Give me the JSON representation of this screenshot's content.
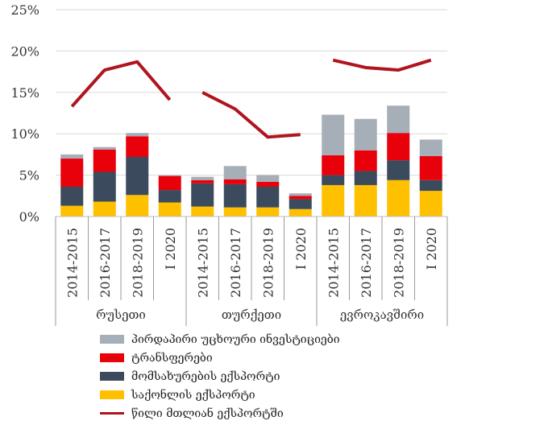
{
  "chart_data": {
    "type": "bar",
    "stacked": true,
    "y_ticks": [
      "0%",
      "5%",
      "10%",
      "15%",
      "20%",
      "25%"
    ],
    "ylim": [
      0,
      25
    ],
    "grid": true,
    "groups": [
      {
        "label": "რუსეთი",
        "categories": [
          "2014-2015",
          "2016-2017",
          "2018-2019",
          "I 2020"
        ]
      },
      {
        "label": "თურქეთი",
        "categories": [
          "2014-2015",
          "2016-2017",
          "2018-2019",
          "I 2020"
        ]
      },
      {
        "label": "ევროკავშირი",
        "categories": [
          "2014-2015",
          "2016-2017",
          "2018-2019",
          "I 2020"
        ]
      }
    ],
    "series": [
      {
        "name": "საქონლის ექსპორტი",
        "kind": "bar",
        "color": "#FFC000",
        "values": [
          1.3,
          1.8,
          2.6,
          1.7,
          1.2,
          1.1,
          1.1,
          0.9,
          3.8,
          3.8,
          4.4,
          3.1
        ]
      },
      {
        "name": "მომსახურების ექსპორტი",
        "kind": "bar",
        "color": "#3B4A5C",
        "values": [
          2.3,
          3.6,
          4.6,
          1.5,
          2.8,
          2.8,
          2.5,
          1.2,
          1.2,
          1.7,
          2.4,
          1.3
        ]
      },
      {
        "name": "ტრანსფერები",
        "kind": "bar",
        "color": "#E8000B",
        "values": [
          3.4,
          2.7,
          2.5,
          1.7,
          0.4,
          0.6,
          0.6,
          0.4,
          2.4,
          2.5,
          3.3,
          2.9
        ]
      },
      {
        "name": "პირდაპირი უცხოური ინვესტიციები",
        "kind": "bar",
        "color": "#A6AEB8",
        "values": [
          0.5,
          0.3,
          0.4,
          0.1,
          0.4,
          1.6,
          0.8,
          0.3,
          4.9,
          3.8,
          3.3,
          2.0
        ]
      },
      {
        "name": "წილი მთლიან ექსპორტში",
        "kind": "line",
        "color": "#B0141E",
        "values": [
          13.3,
          17.7,
          18.7,
          14.1,
          15.0,
          13.0,
          9.6,
          9.9,
          18.9,
          18.0,
          17.7,
          18.9
        ]
      }
    ],
    "legend_order": [
      3,
      2,
      1,
      0,
      4
    ],
    "legend_position": "bottom"
  }
}
